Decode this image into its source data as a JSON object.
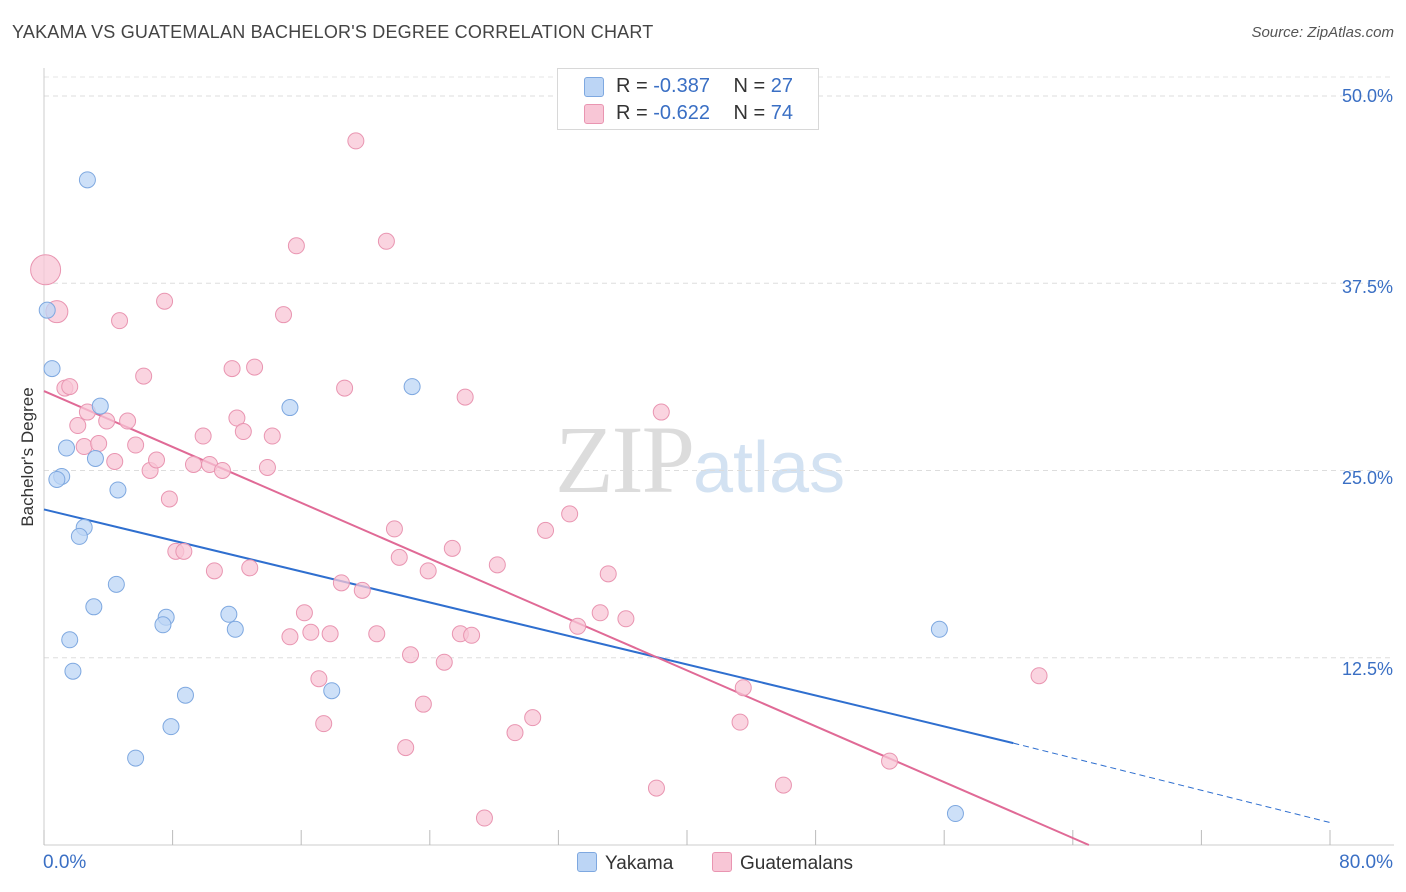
{
  "header": {
    "title": "YAKAMA VS GUATEMALAN BACHELOR'S DEGREE CORRELATION CHART",
    "source": "Source: ZipAtlas.com"
  },
  "legend": {
    "yakama": {
      "r_label": "R = ",
      "r_value": "-0.387",
      "n_label": "N = ",
      "n_value": "27"
    },
    "guatemalans": {
      "r_label": "R = ",
      "r_value": "-0.622",
      "n_label": "N = ",
      "n_value": "74"
    }
  },
  "series_names": {
    "yakama": "Yakama",
    "guatemalans": "Guatemalans"
  },
  "axes": {
    "y_title": "Bachelor's Degree",
    "x_min_label": "0.0%",
    "x_max_label": "80.0%",
    "y_ticks": [
      "50.0%",
      "37.5%",
      "25.0%",
      "12.5%"
    ]
  },
  "watermark": {
    "zip": "ZIP",
    "atlas": "atlas"
  },
  "colors": {
    "yakama_fill": "#bcd5f5",
    "yakama_stroke": "#7ea8e0",
    "yakama_line": "#2f6fcf",
    "guat_fill": "#f8c6d6",
    "guat_stroke": "#e995b1",
    "guat_line": "#e06a96",
    "grid": "#dddddd",
    "axis_label": "#3a6fc4"
  },
  "chart_data": {
    "type": "scatter",
    "title": "YAKAMA VS GUATEMALAN BACHELOR'S DEGREE CORRELATION CHART",
    "xlabel": "",
    "ylabel": "Bachelor's Degree",
    "xlim": [
      0,
      80
    ],
    "ylim": [
      0,
      52
    ],
    "y_gridlines": [
      12.5,
      25.0,
      37.5,
      50.0
    ],
    "legend_position": "top-center",
    "series": [
      {
        "name": "Yakama",
        "r": -0.387,
        "n": 27,
        "points": [
          [
            0.2,
            35.7
          ],
          [
            0.5,
            31.8
          ],
          [
            2.7,
            44.4
          ],
          [
            1.4,
            26.5
          ],
          [
            1.1,
            24.6
          ],
          [
            0.8,
            24.4
          ],
          [
            3.5,
            29.3
          ],
          [
            3.2,
            25.8
          ],
          [
            4.6,
            23.7
          ],
          [
            2.5,
            21.2
          ],
          [
            2.2,
            20.6
          ],
          [
            4.5,
            17.4
          ],
          [
            3.1,
            15.9
          ],
          [
            7.6,
            15.2
          ],
          [
            7.4,
            14.7
          ],
          [
            11.5,
            15.4
          ],
          [
            11.9,
            14.4
          ],
          [
            1.6,
            13.7
          ],
          [
            1.8,
            11.6
          ],
          [
            8.8,
            10.0
          ],
          [
            17.9,
            10.3
          ],
          [
            7.9,
            7.9
          ],
          [
            5.7,
            5.8
          ],
          [
            15.3,
            29.2
          ],
          [
            22.9,
            30.6
          ],
          [
            55.7,
            14.4
          ],
          [
            56.7,
            2.1
          ]
        ],
        "trend": {
          "x0": 0,
          "y0": 22.4,
          "x1": 60.3,
          "y1": 6.8,
          "dash_to_x": 80,
          "dash_to_y": 1.5
        }
      },
      {
        "name": "Guatemalans",
        "r": -0.622,
        "n": 74,
        "points": [
          [
            0.1,
            38.4
          ],
          [
            0.8,
            35.6
          ],
          [
            1.3,
            30.5
          ],
          [
            1.6,
            30.6
          ],
          [
            2.1,
            28.0
          ],
          [
            2.7,
            28.9
          ],
          [
            3.9,
            28.3
          ],
          [
            2.5,
            26.6
          ],
          [
            3.4,
            26.8
          ],
          [
            4.4,
            25.6
          ],
          [
            5.2,
            28.3
          ],
          [
            5.7,
            26.7
          ],
          [
            6.6,
            25.0
          ],
          [
            7.0,
            25.7
          ],
          [
            4.7,
            35.0
          ],
          [
            6.2,
            31.3
          ],
          [
            7.5,
            36.3
          ],
          [
            7.8,
            23.1
          ],
          [
            8.2,
            19.6
          ],
          [
            8.7,
            19.6
          ],
          [
            9.3,
            25.4
          ],
          [
            9.9,
            27.3
          ],
          [
            10.3,
            25.4
          ],
          [
            10.6,
            18.3
          ],
          [
            11.1,
            25.0
          ],
          [
            11.7,
            31.8
          ],
          [
            12.0,
            28.5
          ],
          [
            12.4,
            27.6
          ],
          [
            12.8,
            18.5
          ],
          [
            13.1,
            31.9
          ],
          [
            13.9,
            25.2
          ],
          [
            14.2,
            27.3
          ],
          [
            14.9,
            35.4
          ],
          [
            15.3,
            13.9
          ],
          [
            15.7,
            40.0
          ],
          [
            16.2,
            15.5
          ],
          [
            16.6,
            14.2
          ],
          [
            17.1,
            11.1
          ],
          [
            17.4,
            8.1
          ],
          [
            17.8,
            14.1
          ],
          [
            18.5,
            17.5
          ],
          [
            18.7,
            30.5
          ],
          [
            19.4,
            47.0
          ],
          [
            19.8,
            17.0
          ],
          [
            20.7,
            14.1
          ],
          [
            21.3,
            40.3
          ],
          [
            21.8,
            21.1
          ],
          [
            22.1,
            19.2
          ],
          [
            22.5,
            6.5
          ],
          [
            22.8,
            12.7
          ],
          [
            23.6,
            9.4
          ],
          [
            23.9,
            18.3
          ],
          [
            24.9,
            12.2
          ],
          [
            25.4,
            19.8
          ],
          [
            25.9,
            14.1
          ],
          [
            26.2,
            29.9
          ],
          [
            26.6,
            14.0
          ],
          [
            27.4,
            1.8
          ],
          [
            28.2,
            18.7
          ],
          [
            29.3,
            7.5
          ],
          [
            30.4,
            8.5
          ],
          [
            31.2,
            21.0
          ],
          [
            32.7,
            22.1
          ],
          [
            33.2,
            14.6
          ],
          [
            34.6,
            15.5
          ],
          [
            35.1,
            18.1
          ],
          [
            36.2,
            15.1
          ],
          [
            38.1,
            3.8
          ],
          [
            38.4,
            28.9
          ],
          [
            43.3,
            8.2
          ],
          [
            43.5,
            10.5
          ],
          [
            46.0,
            4.0
          ],
          [
            52.6,
            5.6
          ],
          [
            61.9,
            11.3
          ]
        ],
        "trend": {
          "x0": 0,
          "y0": 30.3,
          "x1": 65.0,
          "y1": 0
        }
      }
    ]
  }
}
